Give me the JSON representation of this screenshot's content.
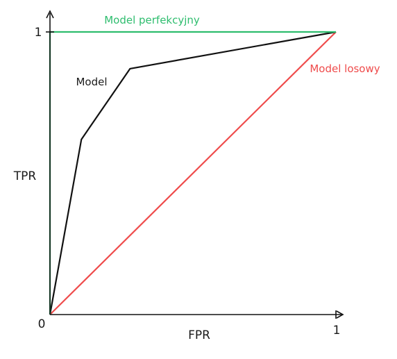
{
  "chart_data": {
    "type": "line",
    "xlabel": "FPR",
    "ylabel": "TPR",
    "xlim": [
      0,
      1
    ],
    "ylim": [
      0,
      1
    ],
    "grid": false,
    "x_ticks": [
      "0",
      "1"
    ],
    "y_ticks": [
      "1"
    ],
    "series": [
      {
        "name": "Model perfekcyjny",
        "color": "#2ebd6e",
        "points": [
          [
            0,
            0
          ],
          [
            0,
            1
          ],
          [
            1,
            1
          ]
        ]
      },
      {
        "name": "Model",
        "color": "#111111",
        "points": [
          [
            0,
            0
          ],
          [
            0.11,
            0.62
          ],
          [
            0.28,
            0.87
          ],
          [
            1,
            1
          ]
        ]
      },
      {
        "name": "Model losowy",
        "color": "#ef4b4b",
        "points": [
          [
            0,
            0
          ],
          [
            1,
            1
          ]
        ]
      }
    ]
  }
}
